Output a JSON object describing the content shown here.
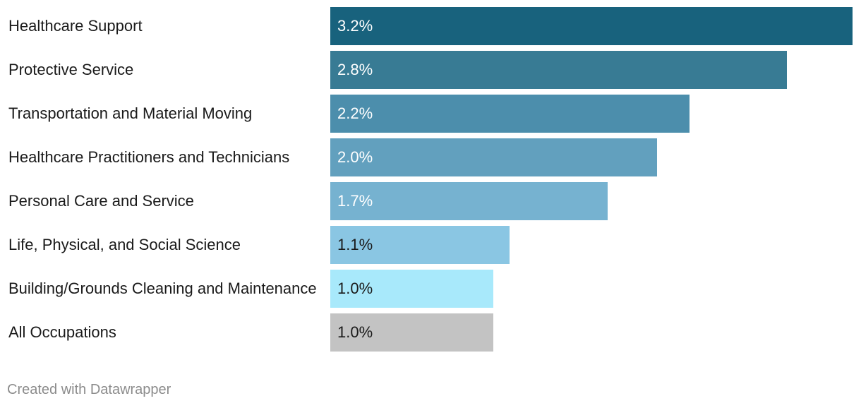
{
  "chart_data": {
    "type": "bar",
    "orientation": "horizontal",
    "categories": [
      "Healthcare Support",
      "Protective Service",
      "Transportation and Material Moving",
      "Healthcare Practitioners and Technicians",
      "Personal Care and Service",
      "Life, Physical, and Social Science",
      "Building/Grounds Cleaning and Maintenance",
      "All Occupations"
    ],
    "values": [
      3.2,
      2.8,
      2.2,
      2.0,
      1.7,
      1.1,
      1.0,
      1.0
    ],
    "value_labels": [
      "3.2%",
      "2.8%",
      "2.2%",
      "2.0%",
      "1.7%",
      "1.1%",
      "1.0%",
      "1.0%"
    ],
    "colors": [
      "#18627d",
      "#387b94",
      "#4c8eac",
      "#62a0be",
      "#76b2d0",
      "#8ac6e3",
      "#a8e9fb",
      "#c3c3c3"
    ],
    "label_colors": [
      "#ffffff",
      "#ffffff",
      "#ffffff",
      "#ffffff",
      "#ffffff",
      "#1a1a1a",
      "#1a1a1a",
      "#1a1a1a"
    ],
    "xlim": [
      0,
      3.2
    ],
    "grid": false,
    "legend": "none"
  },
  "footer": {
    "credit": "Created with Datawrapper"
  }
}
